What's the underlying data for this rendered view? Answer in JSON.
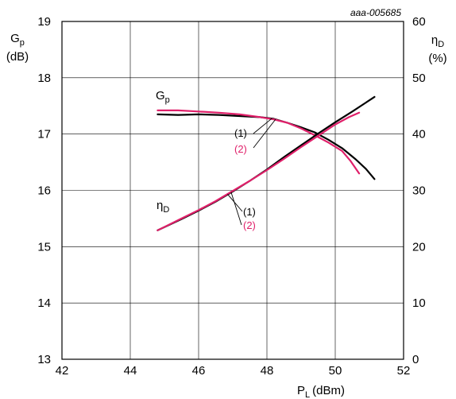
{
  "figure_id": "aaa-005685",
  "chart_data": {
    "type": "line",
    "x_axis": {
      "label": "P",
      "label_sub": "L",
      "label_unit": "(dBm)",
      "range": [
        42,
        52
      ],
      "ticks": [
        42,
        44,
        46,
        48,
        50,
        52
      ]
    },
    "y_left": {
      "label": "G",
      "label_sub": "p",
      "label_unit": "(dB)",
      "range": [
        13,
        19
      ],
      "ticks": [
        13,
        14,
        15,
        16,
        17,
        18,
        19
      ]
    },
    "y_right": {
      "label": "η",
      "label_sub": "D",
      "label_unit": "(%)",
      "range": [
        0,
        60
      ],
      "ticks": [
        0,
        10,
        20,
        30,
        40,
        50,
        60
      ]
    },
    "grid": true,
    "series": [
      {
        "curve": "Gp",
        "variant": "(1)",
        "axis": "left",
        "color": "#000000",
        "points": [
          [
            44.8,
            17.35
          ],
          [
            45.4,
            17.34
          ],
          [
            46.0,
            17.35
          ],
          [
            46.6,
            17.34
          ],
          [
            47.2,
            17.32
          ],
          [
            47.8,
            17.3
          ],
          [
            48.2,
            17.27
          ],
          [
            48.6,
            17.2
          ],
          [
            49.0,
            17.12
          ],
          [
            49.4,
            17.03
          ],
          [
            49.8,
            16.9
          ],
          [
            50.2,
            16.75
          ],
          [
            50.6,
            16.55
          ],
          [
            50.9,
            16.38
          ],
          [
            51.15,
            16.2
          ]
        ]
      },
      {
        "curve": "Gp",
        "variant": "(2)",
        "axis": "left",
        "color": "#e0206a",
        "points": [
          [
            44.8,
            17.42
          ],
          [
            45.4,
            17.42
          ],
          [
            46.0,
            17.4
          ],
          [
            46.6,
            17.38
          ],
          [
            47.2,
            17.35
          ],
          [
            47.8,
            17.3
          ],
          [
            48.2,
            17.26
          ],
          [
            48.6,
            17.2
          ],
          [
            49.0,
            17.1
          ],
          [
            49.4,
            16.98
          ],
          [
            49.8,
            16.85
          ],
          [
            50.2,
            16.7
          ],
          [
            50.45,
            16.52
          ],
          [
            50.7,
            16.3
          ]
        ]
      },
      {
        "curve": "ηD",
        "variant": "(1)",
        "axis": "right",
        "color": "#000000",
        "points": [
          [
            44.8,
            22.9
          ],
          [
            45.5,
            24.9
          ],
          [
            46.0,
            26.4
          ],
          [
            46.5,
            28.0
          ],
          [
            47.0,
            29.8
          ],
          [
            47.5,
            31.7
          ],
          [
            48.0,
            33.7
          ],
          [
            48.5,
            35.9
          ],
          [
            49.0,
            38.0
          ],
          [
            49.5,
            40.1
          ],
          [
            50.0,
            42.1
          ],
          [
            50.5,
            44.0
          ],
          [
            50.9,
            45.6
          ],
          [
            51.15,
            46.6
          ]
        ]
      },
      {
        "curve": "ηD",
        "variant": "(2)",
        "axis": "right",
        "color": "#e0206a",
        "points": [
          [
            44.8,
            22.9
          ],
          [
            45.5,
            25.0
          ],
          [
            46.0,
            26.5
          ],
          [
            46.5,
            28.1
          ],
          [
            47.0,
            29.9
          ],
          [
            47.5,
            31.7
          ],
          [
            48.0,
            33.6
          ],
          [
            48.5,
            35.6
          ],
          [
            49.0,
            37.7
          ],
          [
            49.5,
            39.7
          ],
          [
            50.0,
            41.7
          ],
          [
            50.4,
            43.0
          ],
          [
            50.7,
            43.8
          ]
        ]
      }
    ],
    "annotations": [
      {
        "text": "G",
        "sub": "p",
        "target": "Gp"
      },
      {
        "text": "η",
        "sub": "D",
        "target": "ηD"
      },
      {
        "text": "(1)",
        "color": "#000000",
        "target": "Gp"
      },
      {
        "text": "(2)",
        "color": "#e0206a",
        "target": "Gp"
      },
      {
        "text": "(1)",
        "color": "#000000",
        "target": "ηD"
      },
      {
        "text": "(2)",
        "color": "#e0206a",
        "target": "ηD"
      }
    ]
  }
}
